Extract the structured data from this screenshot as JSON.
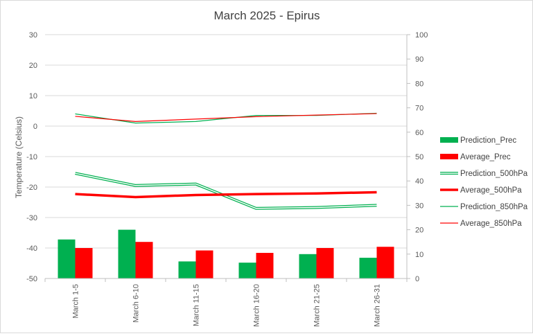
{
  "chart_data": {
    "type": "bar",
    "title": "March 2025 - Epirus",
    "categories": [
      "March 1-5",
      "March 6-10",
      "March 11-15",
      "March 16-20",
      "March 21-25",
      "March 26-31"
    ],
    "y_left": {
      "label": "Temperature (Celsius)",
      "ylim": [
        -50,
        30
      ],
      "ticks": [
        "30",
        "20",
        "10",
        "0",
        "-10",
        "-20",
        "-30",
        "-40",
        "-50"
      ]
    },
    "y_right": {
      "label": "",
      "ylim": [
        0,
        100
      ],
      "ticks": [
        "100",
        "90",
        "80",
        "70",
        "60",
        "50",
        "40",
        "30",
        "20",
        "10",
        "0"
      ]
    },
    "series": [
      {
        "name": "Prediction_Prec",
        "kind": "bar",
        "axis": "right",
        "color": "#00b050",
        "values": [
          16,
          20,
          7,
          6.5,
          10,
          8.5
        ]
      },
      {
        "name": "Average_Prec",
        "kind": "bar",
        "axis": "right",
        "color": "#ff0000",
        "values": [
          12.5,
          15,
          11.5,
          10.5,
          12.5,
          13
        ]
      },
      {
        "name": "Prediction_500hPa",
        "kind": "line",
        "style": "double",
        "axis": "left",
        "color": "#00b050",
        "values": [
          -15.5,
          -19.5,
          -19,
          -27,
          -26.7,
          -26
        ]
      },
      {
        "name": "Average_500hPa",
        "kind": "line",
        "style": "thick",
        "axis": "left",
        "color": "#ff0000",
        "values": [
          -22.3,
          -23.3,
          -22.6,
          -22.3,
          -22.1,
          -21.7
        ]
      },
      {
        "name": "Prediction_850hPa",
        "kind": "line",
        "style": "thin",
        "axis": "left",
        "color": "#00b050",
        "values": [
          4,
          1,
          1.5,
          3.5,
          3.5,
          4.2
        ]
      },
      {
        "name": "Average_850hPa",
        "kind": "line",
        "style": "thin",
        "axis": "left",
        "color": "#ff0000",
        "values": [
          3.2,
          1.5,
          2.3,
          3.1,
          3.6,
          4.1
        ]
      }
    ],
    "gridlines": true,
    "legend_position": "right"
  }
}
